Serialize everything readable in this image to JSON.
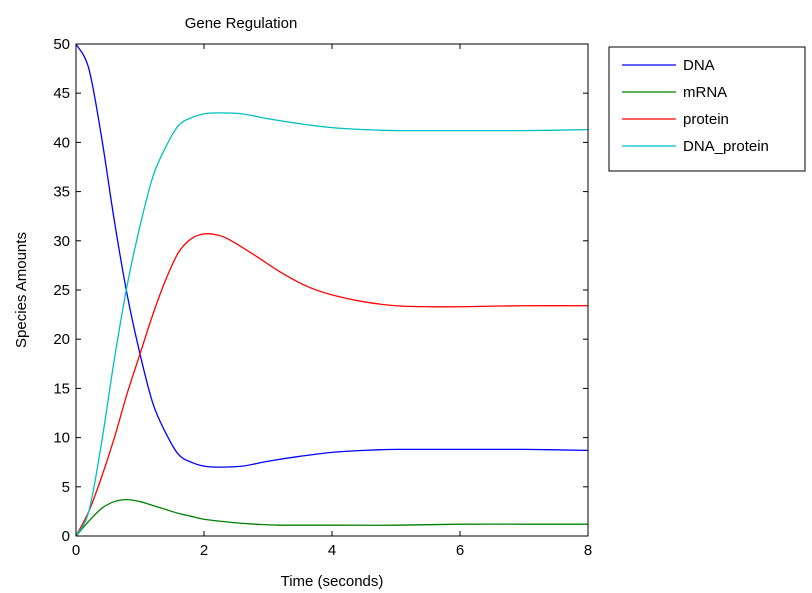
{
  "chart_data": {
    "type": "line",
    "title": "Gene Regulation",
    "xlabel": "Time (seconds)",
    "ylabel": "Species Amounts",
    "xlim": [
      0,
      8
    ],
    "ylim": [
      0,
      50
    ],
    "xticks": [
      0,
      2,
      4,
      6,
      8
    ],
    "yticks": [
      0,
      5,
      10,
      15,
      20,
      25,
      30,
      35,
      40,
      45,
      50
    ],
    "grid": false,
    "legend_position": "outside-top-right",
    "series": [
      {
        "name": "DNA",
        "color": "#0000ff",
        "x": [
          0,
          0.2,
          0.4,
          0.6,
          0.8,
          1.0,
          1.2,
          1.4,
          1.6,
          1.8,
          2.0,
          2.2,
          2.6,
          3.0,
          3.5,
          4.0,
          4.5,
          5.0,
          6.0,
          7.0,
          8.0
        ],
        "y": [
          50,
          47.5,
          40.5,
          32,
          24.5,
          18.5,
          13.5,
          10.5,
          8.3,
          7.5,
          7.1,
          7.0,
          7.1,
          7.6,
          8.1,
          8.5,
          8.7,
          8.8,
          8.8,
          8.8,
          8.7
        ]
      },
      {
        "name": "mRNA",
        "color": "#008000",
        "x": [
          0,
          0.2,
          0.4,
          0.6,
          0.8,
          1.0,
          1.2,
          1.4,
          1.6,
          1.8,
          2.0,
          2.4,
          2.8,
          3.2,
          4.0,
          5.0,
          6.0,
          7.0,
          8.0
        ],
        "y": [
          0,
          1.5,
          2.8,
          3.5,
          3.7,
          3.5,
          3.1,
          2.7,
          2.3,
          2.0,
          1.7,
          1.4,
          1.2,
          1.1,
          1.1,
          1.1,
          1.2,
          1.2,
          1.2
        ]
      },
      {
        "name": "protein",
        "color": "#ff0000",
        "x": [
          0,
          0.2,
          0.4,
          0.6,
          0.8,
          1.0,
          1.2,
          1.4,
          1.6,
          1.8,
          2.0,
          2.2,
          2.4,
          2.8,
          3.2,
          3.6,
          4.0,
          4.5,
          5.0,
          5.5,
          6.0,
          7.0,
          8.0
        ],
        "y": [
          0,
          2.5,
          6.0,
          10.0,
          14.5,
          18.5,
          22.5,
          26.0,
          28.8,
          30.2,
          30.7,
          30.6,
          30.1,
          28.5,
          26.8,
          25.4,
          24.5,
          23.8,
          23.4,
          23.3,
          23.3,
          23.4,
          23.4
        ]
      },
      {
        "name": "DNA_protein",
        "color": "#00bfbf",
        "x": [
          0,
          0.2,
          0.4,
          0.6,
          0.8,
          1.0,
          1.2,
          1.4,
          1.6,
          1.8,
          2.0,
          2.2,
          2.6,
          3.0,
          3.5,
          4.0,
          4.5,
          5.0,
          6.0,
          7.0,
          8.0
        ],
        "y": [
          0,
          2.5,
          9.5,
          18,
          25.5,
          31.5,
          36.5,
          39.5,
          41.7,
          42.5,
          42.9,
          43.0,
          42.9,
          42.4,
          41.9,
          41.5,
          41.3,
          41.2,
          41.2,
          41.2,
          41.3
        ]
      }
    ]
  }
}
